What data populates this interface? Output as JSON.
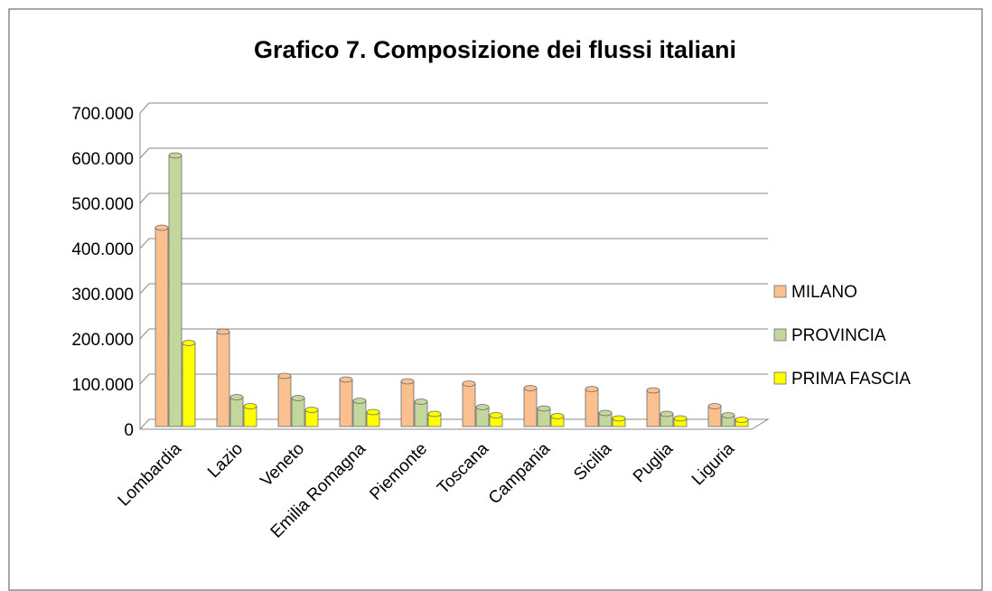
{
  "chart_data": {
    "type": "bar",
    "title": "Grafico 7. Composizione dei flussi italiani",
    "categories": [
      "Lombardia",
      "Lazio",
      "Veneto",
      "Emilia Romagna",
      "Piemonte",
      "Toscana",
      "Campania",
      "Sicilia",
      "Puglia",
      "Liguria"
    ],
    "series": [
      {
        "name": "MILANO",
        "color": "#fac090",
        "values": [
          440000,
          210000,
          112000,
          104000,
          100000,
          95000,
          85000,
          83000,
          80000,
          45000
        ]
      },
      {
        "name": "PROVINCIA",
        "color": "#c3d69b",
        "values": [
          600000,
          65000,
          63000,
          57000,
          55000,
          43000,
          40000,
          30000,
          28000,
          25000
        ]
      },
      {
        "name": "PRIMA FASCIA",
        "color": "#ffff00",
        "values": [
          185000,
          45000,
          37000,
          32000,
          28000,
          25000,
          23000,
          18000,
          18000,
          15000
        ]
      }
    ],
    "ylim": [
      0,
      700000
    ],
    "yticks": [
      0,
      {
        "value": 100000,
        "label": "100.000"
      },
      {
        "value": 200000,
        "label": "200.000"
      },
      {
        "value": 300000,
        "label": "300.000"
      },
      {
        "value": 400000,
        "label": "400.000"
      },
      {
        "value": 500000,
        "label": "500.000"
      },
      {
        "value": 600000,
        "label": "600.000"
      },
      {
        "value": 700000,
        "label": "700.000"
      }
    ],
    "grid": true,
    "legend": "right"
  }
}
